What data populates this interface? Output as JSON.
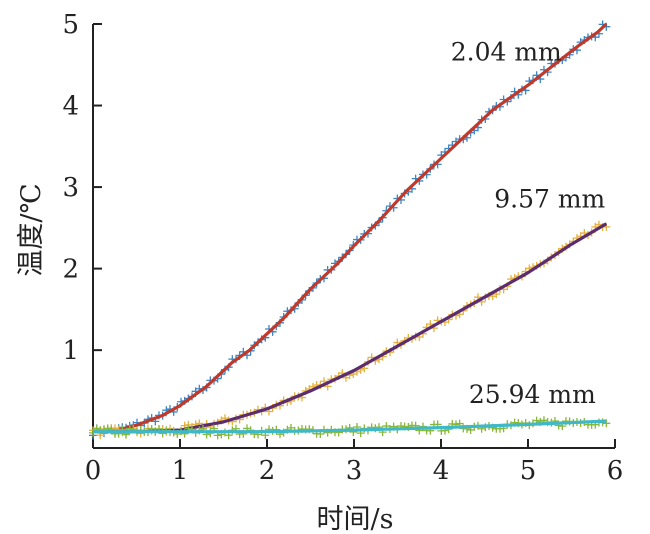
{
  "chart_data": {
    "type": "scatter",
    "title": "",
    "xlabel": "时间/s",
    "ylabel": "温度/℃",
    "xlim": [
      0,
      6
    ],
    "ylim": [
      -0.2,
      5
    ],
    "xticks": [
      0,
      1,
      2,
      3,
      4,
      5,
      6
    ],
    "yticks": [
      1,
      2,
      3,
      4,
      5
    ],
    "grid": false,
    "legend": "none",
    "series": [
      {
        "name": "2.04 mm",
        "marker_color": "#3b86c6",
        "fit_color": "#c0392b",
        "x": [
          0.0,
          0.3,
          0.5,
          0.8,
          1.0,
          1.3,
          1.6,
          1.8,
          2.0,
          2.2,
          2.5,
          2.8,
          3.0,
          3.3,
          3.6,
          4.0,
          4.3,
          4.6,
          5.0,
          5.3,
          5.6,
          5.8,
          5.9
        ],
        "y": [
          0.0,
          0.02,
          0.08,
          0.2,
          0.32,
          0.55,
          0.85,
          1.0,
          1.2,
          1.4,
          1.75,
          2.05,
          2.28,
          2.6,
          2.95,
          3.35,
          3.65,
          3.95,
          4.25,
          4.5,
          4.75,
          4.9,
          5.0
        ]
      },
      {
        "name": "9.57 mm",
        "marker_color": "#e6b13f",
        "fit_color": "#5b2c6f",
        "x": [
          0.0,
          0.5,
          1.0,
          1.5,
          2.0,
          2.5,
          3.0,
          3.5,
          4.0,
          4.5,
          5.0,
          5.5,
          5.9
        ],
        "y": [
          0.0,
          0.0,
          0.02,
          0.12,
          0.28,
          0.5,
          0.75,
          1.05,
          1.35,
          1.65,
          1.95,
          2.3,
          2.55
        ]
      },
      {
        "name": "25.94 mm",
        "marker_color": "#86b83a",
        "fit_color": "#3fb8c9",
        "x": [
          0.0,
          1.0,
          2.0,
          3.0,
          4.0,
          5.0,
          5.9
        ],
        "y": [
          0.0,
          0.0,
          0.0,
          0.02,
          0.05,
          0.09,
          0.13
        ]
      }
    ],
    "annotations": [
      {
        "text": "2.04 mm",
        "x": 4.75,
        "y": 4.55
      },
      {
        "text": "9.57 mm",
        "x": 5.25,
        "y": 2.75
      },
      {
        "text": "25.94 mm",
        "x": 5.05,
        "y": 0.35
      }
    ]
  }
}
